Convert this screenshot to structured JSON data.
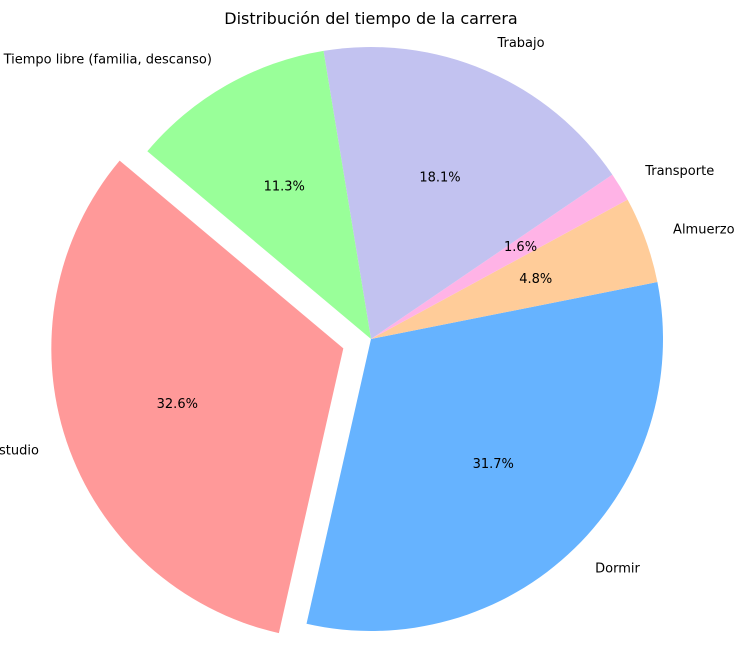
{
  "chart_data": {
    "type": "pie",
    "title": "Distribución del tiempo de la carrera",
    "start_angle_deg": 140,
    "direction": "counterclockwise",
    "slices": [
      {
        "label": "Estudio",
        "value": 32.6,
        "pct_label": "32.6%",
        "color": "#ff9999",
        "explode": true
      },
      {
        "label": "Dormir",
        "value": 31.7,
        "pct_label": "31.7%",
        "color": "#66b3ff",
        "explode": false
      },
      {
        "label": "Almuerzo",
        "value": 4.8,
        "pct_label": "4.8%",
        "color": "#ffcc99",
        "explode": false
      },
      {
        "label": "Transporte",
        "value": 1.6,
        "pct_label": "1.6%",
        "color": "#ffb3e6",
        "explode": false
      },
      {
        "label": "Trabajo",
        "value": 18.1,
        "pct_label": "18.1%",
        "color": "#c2c2f0",
        "explode": false
      },
      {
        "label": "Tiempo libre (familia, descanso)",
        "value": 11.3,
        "pct_label": "11.3%",
        "color": "#99ff99",
        "explode": false
      }
    ]
  }
}
